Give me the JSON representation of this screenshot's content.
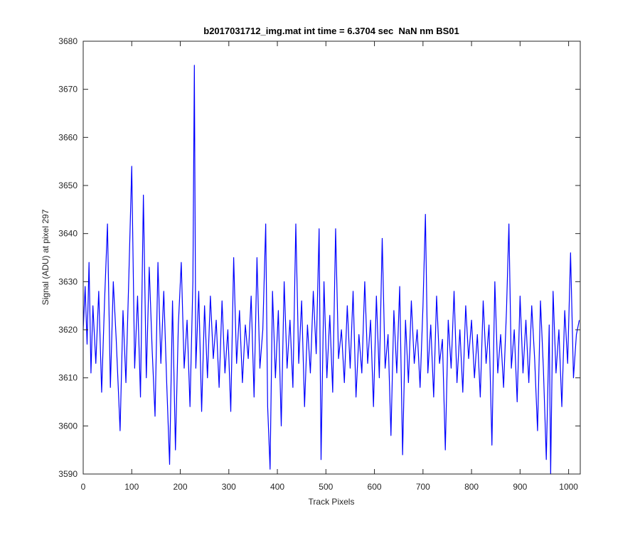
{
  "chart_data": {
    "type": "line",
    "title": "b2017031712_img.mat int time = 6.3704 sec  NaN nm BS01",
    "x_label": "Track Pixels",
    "y_label": "Signal (ADU) at pixel 297",
    "color": "#0000ff",
    "xlim": [
      0,
      1024
    ],
    "ylim": [
      3590,
      3680
    ],
    "xticks": [
      0,
      100,
      200,
      300,
      400,
      500,
      600,
      700,
      800,
      900,
      1000
    ],
    "yticks": [
      3590,
      3600,
      3610,
      3620,
      3630,
      3640,
      3650,
      3660,
      3670,
      3680
    ],
    "x": [
      0,
      4,
      8,
      12,
      16,
      20,
      26,
      32,
      38,
      44,
      50,
      56,
      62,
      68,
      76,
      82,
      88,
      94,
      100,
      106,
      112,
      118,
      124,
      130,
      136,
      142,
      148,
      154,
      160,
      166,
      172,
      178,
      184,
      190,
      196,
      202,
      208,
      214,
      220,
      226,
      229,
      232,
      238,
      244,
      250,
      256,
      262,
      268,
      274,
      280,
      286,
      292,
      298,
      304,
      310,
      316,
      322,
      328,
      334,
      340,
      346,
      352,
      358,
      364,
      370,
      376,
      380,
      385,
      390,
      396,
      402,
      408,
      414,
      420,
      426,
      432,
      438,
      444,
      450,
      456,
      462,
      468,
      474,
      480,
      486,
      490,
      496,
      502,
      508,
      514,
      520,
      526,
      532,
      538,
      544,
      550,
      556,
      562,
      568,
      574,
      580,
      586,
      592,
      598,
      604,
      610,
      616,
      622,
      628,
      634,
      640,
      646,
      652,
      658,
      664,
      670,
      676,
      682,
      688,
      694,
      700,
      705,
      710,
      716,
      722,
      728,
      734,
      740,
      746,
      752,
      758,
      764,
      770,
      776,
      782,
      788,
      794,
      800,
      806,
      812,
      818,
      824,
      830,
      836,
      842,
      848,
      854,
      860,
      866,
      872,
      877,
      882,
      888,
      894,
      900,
      906,
      912,
      918,
      924,
      930,
      936,
      942,
      948,
      954,
      960,
      963,
      968,
      974,
      980,
      986,
      992,
      998,
      1004,
      1010,
      1016,
      1022
    ],
    "values": [
      3620,
      3629,
      3617,
      3634,
      3611,
      3625,
      3613,
      3628,
      3607,
      3626,
      3642,
      3608,
      3630,
      3618,
      3599,
      3624,
      3609,
      3631,
      3654,
      3612,
      3627,
      3606,
      3648,
      3610,
      3633,
      3616,
      3602,
      3634,
      3613,
      3628,
      3609,
      3592,
      3626,
      3595,
      3621,
      3634,
      3612,
      3622,
      3604,
      3630,
      3675,
      3612,
      3628,
      3603,
      3625,
      3610,
      3627,
      3614,
      3622,
      3608,
      3626,
      3611,
      3620,
      3603,
      3635,
      3613,
      3624,
      3609,
      3621,
      3614,
      3627,
      3606,
      3635,
      3612,
      3620,
      3642,
      3604,
      3591,
      3628,
      3610,
      3624,
      3600,
      3630,
      3612,
      3622,
      3608,
      3642,
      3613,
      3626,
      3604,
      3621,
      3611,
      3628,
      3615,
      3641,
      3593,
      3630,
      3610,
      3623,
      3607,
      3641,
      3614,
      3620,
      3609,
      3625,
      3612,
      3628,
      3606,
      3619,
      3611,
      3630,
      3613,
      3622,
      3604,
      3627,
      3610,
      3639,
      3612,
      3619,
      3598,
      3624,
      3611,
      3629,
      3594,
      3622,
      3609,
      3626,
      3613,
      3620,
      3608,
      3625,
      3644,
      3611,
      3621,
      3606,
      3627,
      3613,
      3618,
      3595,
      3622,
      3612,
      3628,
      3609,
      3620,
      3607,
      3625,
      3614,
      3622,
      3610,
      3619,
      3606,
      3626,
      3613,
      3621,
      3596,
      3630,
      3611,
      3619,
      3608,
      3624,
      3642,
      3612,
      3620,
      3605,
      3627,
      3611,
      3622,
      3609,
      3625,
      3614,
      3599,
      3626,
      3612,
      3593,
      3621,
      3590,
      3628,
      3611,
      3620,
      3604,
      3624,
      3613,
      3636,
      3610,
      3619,
      3622
    ]
  }
}
